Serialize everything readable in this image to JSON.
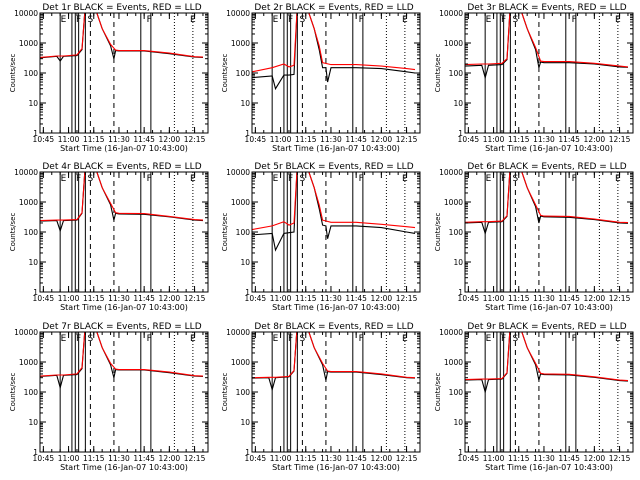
{
  "chart_data": {
    "type": "line",
    "y_scale": "log",
    "ylim": [
      1,
      10000
    ],
    "y_tick_labels": [
      "1",
      "10",
      "100",
      "1000",
      "10000"
    ],
    "x_tick_labels": [
      "10:45",
      "11:00",
      "11:15",
      "11:30",
      "11:45",
      "12:00",
      "12:15"
    ],
    "xlabel": "Start Time (16-Jan-07 10:43:00)",
    "ylabel": "Counts/sec",
    "series_colors": {
      "events": "#000000",
      "lld": "#ff0000"
    },
    "time_marks": [
      {
        "time": "10:55",
        "style": "solid"
      },
      {
        "time": "11:02",
        "style": "solid"
      },
      {
        "time": "11:04",
        "style": "solid"
      },
      {
        "time": "11:06",
        "style": "solid"
      },
      {
        "time": "11:10",
        "style": "solid"
      },
      {
        "time": "11:13",
        "style": "dashed"
      },
      {
        "time": "11:27",
        "style": "dashed"
      },
      {
        "time": "11:43",
        "style": "solid"
      },
      {
        "time": "11:49",
        "style": "solid"
      },
      {
        "time": "12:03",
        "style": "dotted"
      },
      {
        "time": "12:14",
        "style": "dotted"
      }
    ],
    "annotations": [
      {
        "text": "E",
        "time": "10:57"
      },
      {
        "text": "F",
        "time": "11:06"
      },
      {
        "text": "S",
        "time": "11:13"
      },
      {
        "text": "F",
        "time": "11:48"
      },
      {
        "text": "E",
        "time": "12:14"
      }
    ],
    "panels": [
      {
        "title": "Det 1r BLACK = Events, RED = LLD",
        "series": [
          {
            "name": "Events",
            "x": [
              "10:43",
              "10:53",
              "10:55",
              "10:57",
              "11:05",
              "11:08",
              "11:10",
              "11:15",
              "11:20",
              "11:25",
              "11:27",
              "11:28",
              "11:30",
              "11:45",
              "12:00",
              "12:15",
              "12:20"
            ],
            "y": [
              320,
              360,
              250,
              360,
              380,
              600,
              20000,
              20000,
              3000,
              800,
              300,
              560,
              540,
              540,
              440,
              340,
              330
            ]
          },
          {
            "name": "LLD",
            "x": [
              "10:43",
              "10:53",
              "10:57",
              "11:05",
              "11:08",
              "11:10",
              "11:15",
              "11:20",
              "11:25",
              "11:28",
              "11:30",
              "11:45",
              "12:00",
              "12:15",
              "12:20"
            ],
            "y": [
              330,
              370,
              370,
              400,
              650,
              20000,
              20000,
              3000,
              900,
              580,
              560,
              560,
              460,
              350,
              340
            ]
          }
        ]
      },
      {
        "title": "Det 2r BLACK = Events, RED = LLD",
        "series": [
          {
            "name": "Events",
            "x": [
              "10:43",
              "10:55",
              "10:57",
              "11:02",
              "11:05",
              "11:08",
              "11:10",
              "11:15",
              "11:20",
              "11:23",
              "11:25",
              "11:27",
              "11:28",
              "11:30",
              "11:45",
              "12:00",
              "12:15",
              "12:20"
            ],
            "y": [
              70,
              80,
              30,
              85,
              85,
              90,
              20000,
              20000,
              3000,
              600,
              150,
              150,
              50,
              150,
              150,
              140,
              110,
              100
            ]
          },
          {
            "name": "LLD",
            "x": [
              "10:43",
              "10:55",
              "11:02",
              "11:05",
              "11:08",
              "11:10",
              "11:15",
              "11:20",
              "11:23",
              "11:25",
              "11:30",
              "11:45",
              "12:00",
              "12:15",
              "12:20"
            ],
            "y": [
              110,
              150,
              200,
              160,
              180,
              20000,
              20000,
              3000,
              800,
              220,
              190,
              190,
              170,
              140,
              130
            ]
          }
        ]
      },
      {
        "title": "Det 3r BLACK = Events, RED = LLD",
        "series": [
          {
            "name": "Events",
            "x": [
              "10:43",
              "10:53",
              "10:55",
              "10:57",
              "11:05",
              "11:08",
              "11:10",
              "11:15",
              "11:20",
              "11:25",
              "11:27",
              "11:28",
              "11:30",
              "11:45",
              "12:00",
              "12:15",
              "12:20"
            ],
            "y": [
              170,
              180,
              70,
              180,
              190,
              280,
              20000,
              20000,
              3000,
              600,
              150,
              230,
              220,
              220,
              200,
              160,
              155
            ]
          },
          {
            "name": "LLD",
            "x": [
              "10:43",
              "10:53",
              "10:57",
              "11:05",
              "11:08",
              "11:10",
              "11:15",
              "11:20",
              "11:25",
              "11:28",
              "11:30",
              "11:45",
              "12:00",
              "12:15",
              "12:20"
            ],
            "y": [
              190,
              200,
              200,
              210,
              300,
              20000,
              20000,
              3000,
              700,
              250,
              240,
              240,
              210,
              170,
              160
            ]
          }
        ]
      },
      {
        "title": "Det 4r BLACK = Events, RED = LLD",
        "series": [
          {
            "name": "Events",
            "x": [
              "10:43",
              "10:53",
              "10:55",
              "10:57",
              "11:05",
              "11:08",
              "11:10",
              "11:15",
              "11:20",
              "11:25",
              "11:27",
              "11:28",
              "11:30",
              "11:45",
              "12:00",
              "12:15",
              "12:20"
            ],
            "y": [
              230,
              240,
              110,
              240,
              250,
              420,
              20000,
              20000,
              3000,
              800,
              250,
              420,
              400,
              390,
              320,
              250,
              240
            ]
          },
          {
            "name": "LLD",
            "x": [
              "10:43",
              "10:53",
              "10:57",
              "11:05",
              "11:08",
              "11:10",
              "11:15",
              "11:20",
              "11:25",
              "11:28",
              "11:30",
              "11:45",
              "12:00",
              "12:15",
              "12:20"
            ],
            "y": [
              240,
              250,
              250,
              260,
              440,
              20000,
              20000,
              3000,
              900,
              440,
              420,
              410,
              330,
              260,
              250
            ]
          }
        ]
      },
      {
        "title": "Det 5r BLACK = Events, RED = LLD",
        "series": [
          {
            "name": "Events",
            "x": [
              "10:43",
              "10:55",
              "10:57",
              "11:02",
              "11:05",
              "11:08",
              "11:10",
              "11:15",
              "11:20",
              "11:23",
              "11:25",
              "11:27",
              "11:28",
              "11:30",
              "11:45",
              "12:00",
              "12:15",
              "12:20"
            ],
            "y": [
              80,
              90,
              25,
              90,
              95,
              100,
              20000,
              20000,
              3000,
              600,
              170,
              160,
              60,
              160,
              160,
              140,
              100,
              90
            ]
          },
          {
            "name": "LLD",
            "x": [
              "10:43",
              "10:55",
              "11:02",
              "11:05",
              "11:08",
              "11:10",
              "11:15",
              "11:20",
              "11:23",
              "11:25",
              "11:30",
              "11:45",
              "12:00",
              "12:15",
              "12:20"
            ],
            "y": [
              120,
              160,
              220,
              170,
              200,
              20000,
              20000,
              3000,
              800,
              250,
              210,
              210,
              180,
              150,
              140
            ]
          }
        ]
      },
      {
        "title": "Det 6r BLACK = Events, RED = LLD",
        "series": [
          {
            "name": "Events",
            "x": [
              "10:43",
              "10:53",
              "10:55",
              "10:57",
              "11:05",
              "11:08",
              "11:10",
              "11:15",
              "11:20",
              "11:25",
              "11:27",
              "11:28",
              "11:30",
              "11:45",
              "12:00",
              "12:15",
              "12:20"
            ],
            "y": [
              200,
              210,
              90,
              210,
              220,
              330,
              20000,
              20000,
              3000,
              700,
              200,
              340,
              320,
              310,
              260,
              200,
              195
            ]
          },
          {
            "name": "LLD",
            "x": [
              "10:43",
              "10:53",
              "10:57",
              "11:05",
              "11:08",
              "11:10",
              "11:15",
              "11:20",
              "11:25",
              "11:28",
              "11:30",
              "11:45",
              "12:00",
              "12:15",
              "12:20"
            ],
            "y": [
              210,
              220,
              220,
              230,
              350,
              20000,
              20000,
              3000,
              800,
              360,
              340,
              330,
              270,
              210,
              205
            ]
          }
        ]
      },
      {
        "title": "Det 7r BLACK = Events, RED = LLD",
        "series": [
          {
            "name": "Events",
            "x": [
              "10:43",
              "10:53",
              "10:55",
              "10:57",
              "11:05",
              "11:08",
              "11:10",
              "11:15",
              "11:20",
              "11:25",
              "11:27",
              "11:28",
              "11:30",
              "11:45",
              "12:00",
              "12:15",
              "12:20"
            ],
            "y": [
              330,
              360,
              140,
              360,
              380,
              600,
              20000,
              20000,
              3000,
              800,
              300,
              560,
              540,
              540,
              440,
              340,
              330
            ]
          },
          {
            "name": "LLD",
            "x": [
              "10:43",
              "10:53",
              "10:57",
              "11:05",
              "11:08",
              "11:10",
              "11:15",
              "11:20",
              "11:25",
              "11:28",
              "11:30",
              "11:45",
              "12:00",
              "12:15",
              "12:20"
            ],
            "y": [
              340,
              370,
              370,
              400,
              650,
              20000,
              20000,
              3000,
              900,
              580,
              560,
              560,
              460,
              350,
              340
            ]
          }
        ]
      },
      {
        "title": "Det 8r BLACK = Events, RED = LLD",
        "series": [
          {
            "name": "Events",
            "x": [
              "10:43",
              "10:53",
              "10:55",
              "10:57",
              "11:05",
              "11:08",
              "11:10",
              "11:15",
              "11:20",
              "11:25",
              "11:27",
              "11:28",
              "11:30",
              "11:45",
              "12:00",
              "12:15",
              "12:20"
            ],
            "y": [
              290,
              300,
              120,
              300,
              320,
              500,
              20000,
              20000,
              3000,
              800,
              250,
              480,
              460,
              460,
              380,
              300,
              290
            ]
          },
          {
            "name": "LLD",
            "x": [
              "10:43",
              "10:53",
              "10:57",
              "11:05",
              "11:08",
              "11:10",
              "11:15",
              "11:20",
              "11:25",
              "11:28",
              "11:30",
              "11:45",
              "12:00",
              "12:15",
              "12:20"
            ],
            "y": [
              300,
              310,
              310,
              330,
              520,
              20000,
              20000,
              3000,
              900,
              500,
              480,
              480,
              400,
              310,
              300
            ]
          }
        ]
      },
      {
        "title": "Det 9r BLACK = Events, RED = LLD",
        "series": [
          {
            "name": "Events",
            "x": [
              "10:43",
              "10:53",
              "10:55",
              "10:57",
              "11:05",
              "11:08",
              "11:10",
              "11:15",
              "11:20",
              "11:25",
              "11:27",
              "11:28",
              "11:30",
              "11:45",
              "12:00",
              "12:15",
              "12:20"
            ],
            "y": [
              250,
              260,
              100,
              260,
              270,
              420,
              20000,
              20000,
              3000,
              800,
              250,
              400,
              380,
              370,
              310,
              240,
              230
            ]
          },
          {
            "name": "LLD",
            "x": [
              "10:43",
              "10:53",
              "10:57",
              "11:05",
              "11:08",
              "11:10",
              "11:15",
              "11:20",
              "11:25",
              "11:28",
              "11:30",
              "11:45",
              "12:00",
              "12:15",
              "12:20"
            ],
            "y": [
              260,
              270,
              270,
              280,
              440,
              20000,
              20000,
              3000,
              900,
              420,
              400,
              390,
              320,
              250,
              240
            ]
          }
        ]
      }
    ]
  }
}
